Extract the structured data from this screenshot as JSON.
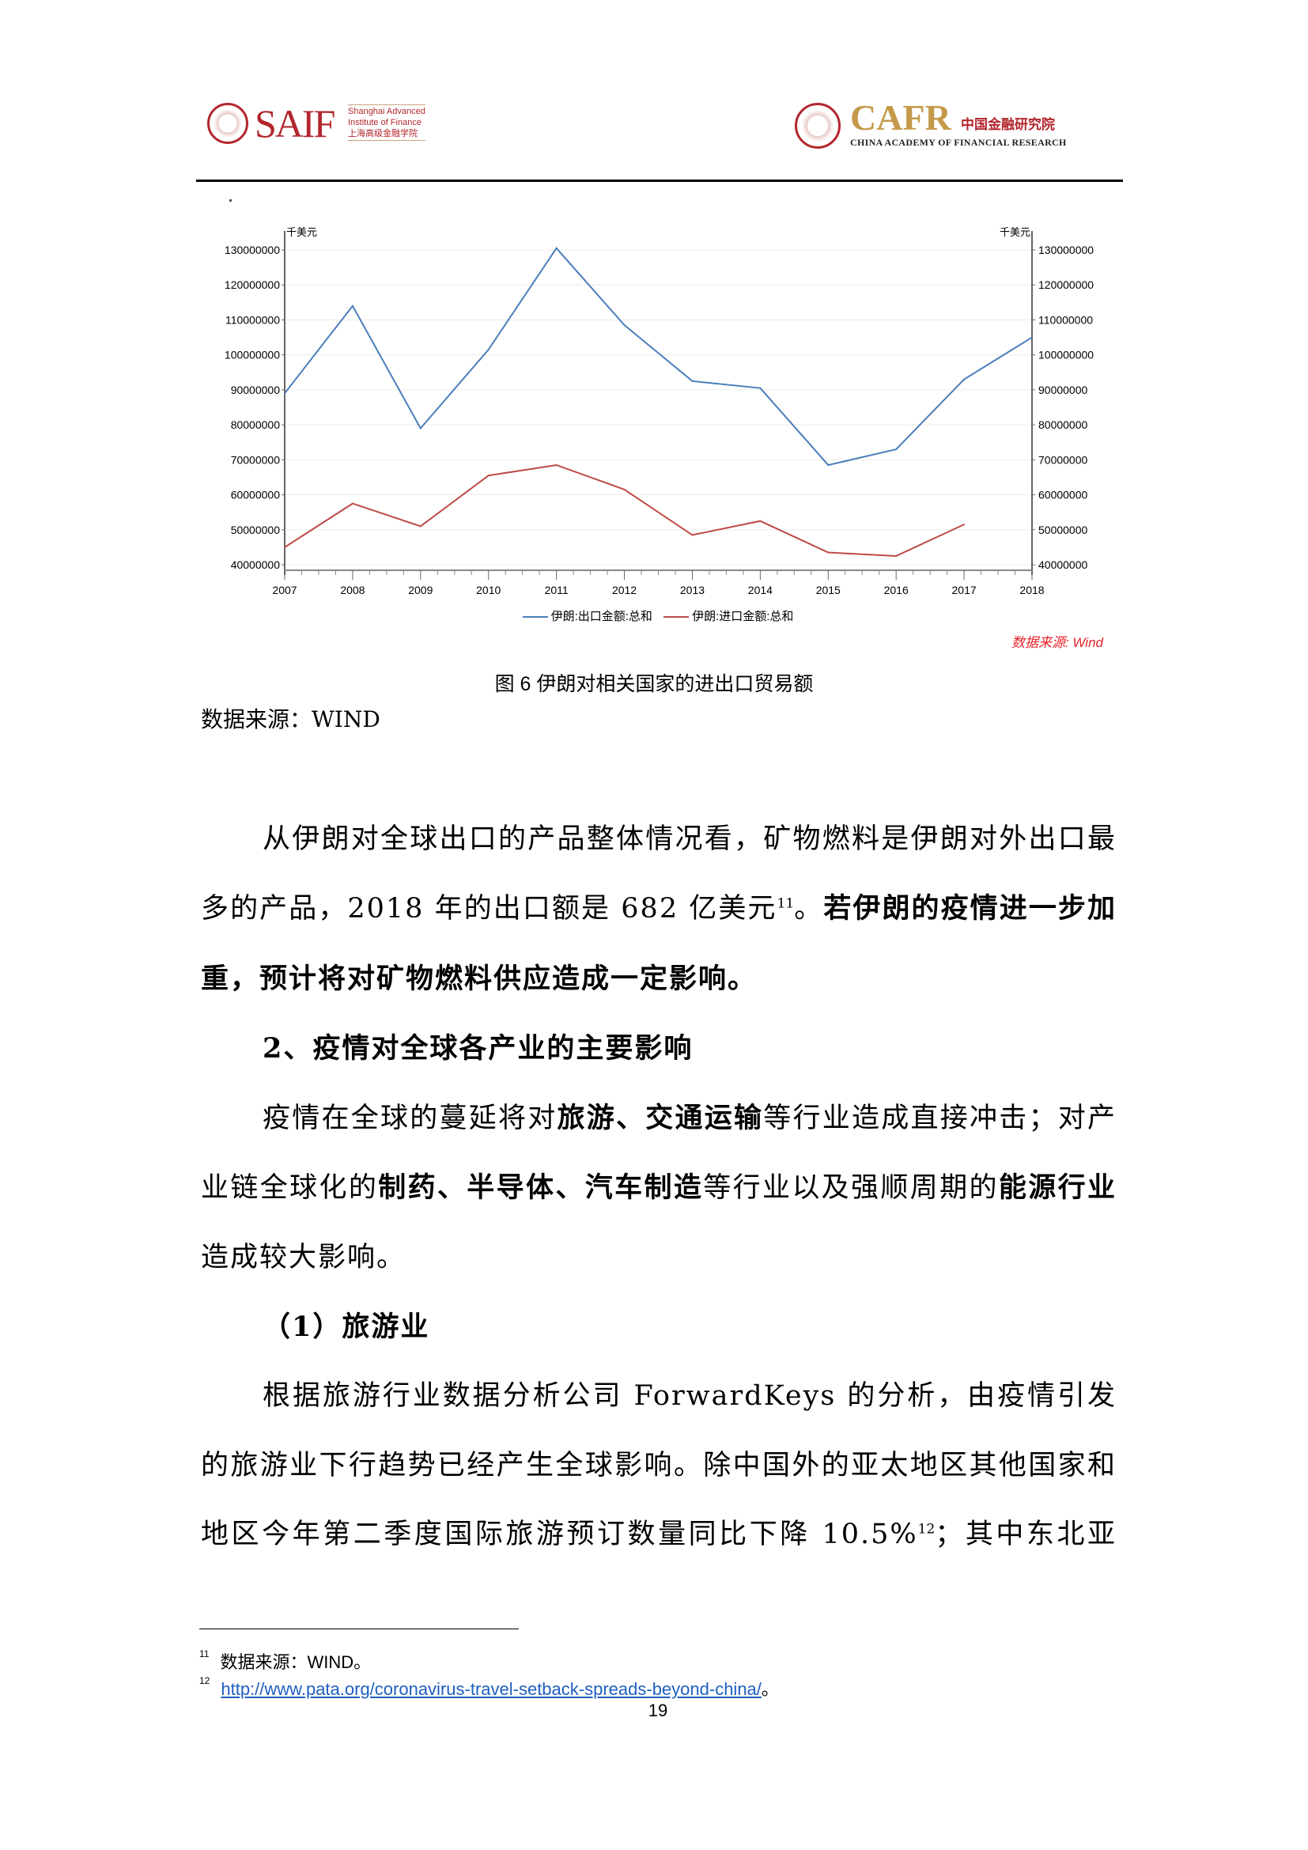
{
  "header": {
    "left_logo": {
      "word": "SAIF",
      "sub_en_1": "Shanghai Advanced",
      "sub_en_2": "Institute of Finance",
      "sub_cn": "上海高级金融学院"
    },
    "right_logo": {
      "word": "CAFR",
      "cn": "中国金融研究院",
      "en": "CHINA ACADEMY OF FINANCIAL RESEARCH"
    }
  },
  "chart_data": {
    "type": "line",
    "title": "",
    "y_unit_left": "千美元",
    "y_unit_right": "千美元",
    "x": [
      "2007",
      "2008",
      "2009",
      "2010",
      "2011",
      "2012",
      "2013",
      "2014",
      "2015",
      "2016",
      "2017",
      "2018"
    ],
    "ylim": [
      40000000,
      130000000
    ],
    "y_ticks": [
      "130000000",
      "120000000",
      "110000000",
      "100000000",
      "90000000",
      "80000000",
      "70000000",
      "60000000",
      "50000000",
      "40000000"
    ],
    "grid": true,
    "legend_placement": "bottom",
    "series": [
      {
        "name": "伊朗:出口金额:总和",
        "color": "#4a7ebb",
        "values": [
          89000000,
          114000000,
          79000000,
          101500000,
          130500000,
          108500000,
          92500000,
          90500000,
          68500000,
          73000000,
          93000000,
          105000000
        ]
      },
      {
        "name": "伊朗:进口金额:总和",
        "color": "#be4b48",
        "values": [
          45000000,
          57500000,
          51000000,
          65500000,
          68500000,
          61500000,
          48500000,
          52500000,
          43500000,
          42500000,
          51500000,
          null
        ]
      }
    ],
    "source_note": "数据来源: Wind"
  },
  "figure": {
    "caption": "图 6 伊朗对相关国家的进出口贸易额",
    "source": "数据来源：WIND"
  },
  "paragraphs": [
    {
      "indent": true,
      "runs": [
        {
          "t": "从伊朗对全球出口的产品整体情况看，矿物燃料是伊朗对外出口最多的产品，2018 年的出口额是 682 亿美元"
        },
        {
          "t": "11",
          "sup": true
        },
        {
          "t": "。"
        },
        {
          "t": "若伊朗的疫情进一步加重，预计将对矿物燃料供应造成一定影响。",
          "b": true
        }
      ]
    },
    {
      "indent": true,
      "runs": [
        {
          "t": "2、疫情对全球各产业的主要影响",
          "b": true
        }
      ]
    },
    {
      "indent": true,
      "runs": [
        {
          "t": "疫情在全球的蔓延将对"
        },
        {
          "t": "旅游、交通运输",
          "b": true
        },
        {
          "t": "等行业造成直接冲击；对产业链全球化的"
        },
        {
          "t": "制药、半导体、汽车制造",
          "b": true
        },
        {
          "t": "等行业以及强顺周期的"
        },
        {
          "t": "能源行业",
          "b": true
        },
        {
          "t": "造成较大影响。"
        }
      ]
    },
    {
      "indent": true,
      "runs": [
        {
          "t": "（1）旅游业",
          "b": true
        }
      ]
    },
    {
      "indent": true,
      "cont": true,
      "runs": [
        {
          "t": "根据旅游行业数据分析公司 ForwardKeys 的分析，由疫情引发的旅游业下行趋势已经产生全球影响。除中国外的亚太地区其他国家和地区今年第二季度国际旅游预订数量同比下降 10.5%"
        },
        {
          "t": "12",
          "sup": true
        },
        {
          "t": "；其中东北亚"
        }
      ]
    }
  ],
  "footnotes": [
    {
      "num": "11",
      "text": "数据来源：WIND。"
    },
    {
      "num": "12",
      "link": "http://www.pata.org/coronavirus-travel-setback-spreads-beyond-china/",
      "after": "。"
    }
  ],
  "page_number": "19"
}
